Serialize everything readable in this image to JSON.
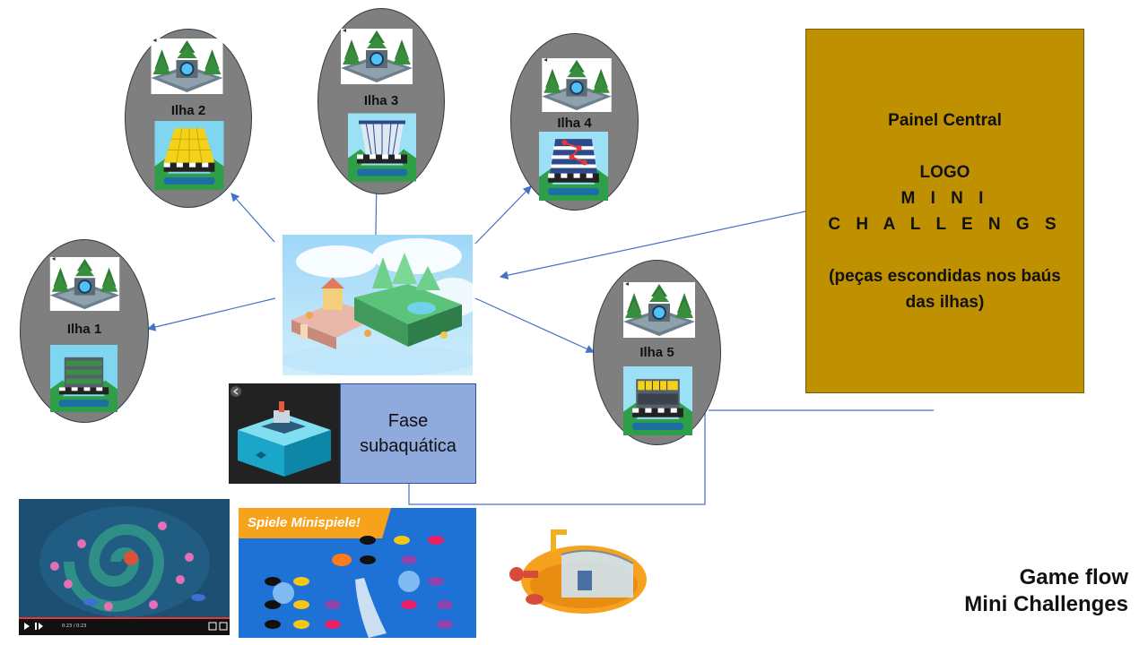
{
  "islands": [
    {
      "label": "Ilha 1",
      "tile": "green"
    },
    {
      "label": "Ilha 2",
      "tile": "yellow"
    },
    {
      "label": "Ilha 3",
      "tile": "blue-lines"
    },
    {
      "label": "Ilha 4",
      "tile": "blue-red"
    },
    {
      "label": "Ilha 5",
      "tile": "yellow-dark"
    }
  ],
  "painel": {
    "line1": "Painel Central",
    "line2": "LOGO",
    "line3": "M I N I",
    "line4": "C H A L L E N G S",
    "line5": "(peças escondidas nos baús",
    "line6": "das ilhas)"
  },
  "fase": {
    "line1": "Fase",
    "line2": "subaquática"
  },
  "screenshots": {
    "spiele_banner": "Spiele Minispiele!",
    "video_time": "0:23 / 0:23"
  },
  "title": {
    "line1": "Game flow",
    "line2": "Mini Challenges"
  },
  "colors": {
    "oval": "#7f7f7f",
    "painel": "#bf9000",
    "fase": "#8faadc",
    "connector": "#4472c4"
  }
}
